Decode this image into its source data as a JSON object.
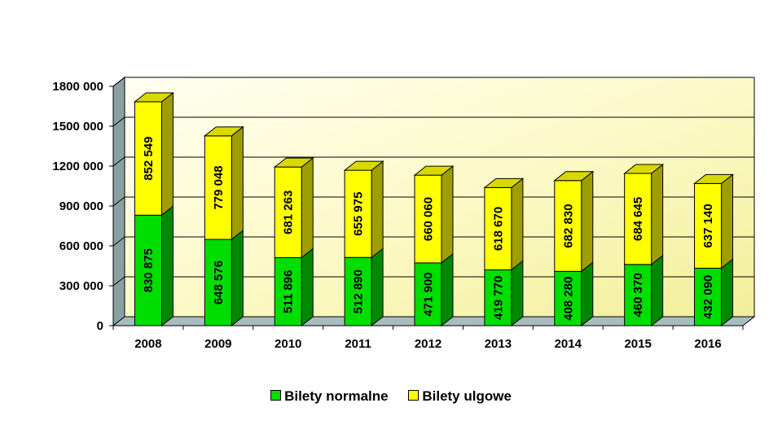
{
  "chart_data": {
    "type": "bar",
    "stacked": true,
    "style": "3d-column",
    "categories": [
      "2008",
      "2009",
      "2010",
      "2011",
      "2012",
      "2013",
      "2014",
      "2015",
      "2016"
    ],
    "series": [
      {
        "name": "Bilety normalne",
        "color": "#00dd00",
        "values": [
          830875,
          648576,
          511896,
          512890,
          471900,
          419770,
          408280,
          460370,
          432090
        ],
        "labels": [
          "830 875",
          "648 576",
          "511 896",
          "512 890",
          "471 900",
          "419 770",
          "408 280",
          "460 370",
          "432 090"
        ]
      },
      {
        "name": "Bilety ulgowe",
        "color": "#ffff00",
        "values": [
          852549,
          779048,
          681263,
          655975,
          660060,
          618670,
          682830,
          684645,
          637140
        ],
        "labels": [
          "852 549",
          "779 048",
          "681 263",
          "655 975",
          "660 060",
          "618 670",
          "682 830",
          "684 645",
          "637 140"
        ]
      }
    ],
    "yticks": [
      0,
      300000,
      600000,
      900000,
      1200000,
      1500000,
      1800000
    ],
    "ytick_labels": [
      "0",
      "300 000",
      "600 000",
      "900 000",
      "1200 000",
      "1500 000",
      "1800 000"
    ],
    "ylim": [
      0,
      1800000
    ],
    "grid": true,
    "legend_position": "bottom",
    "title": "",
    "xlabel": "",
    "ylabel": ""
  }
}
